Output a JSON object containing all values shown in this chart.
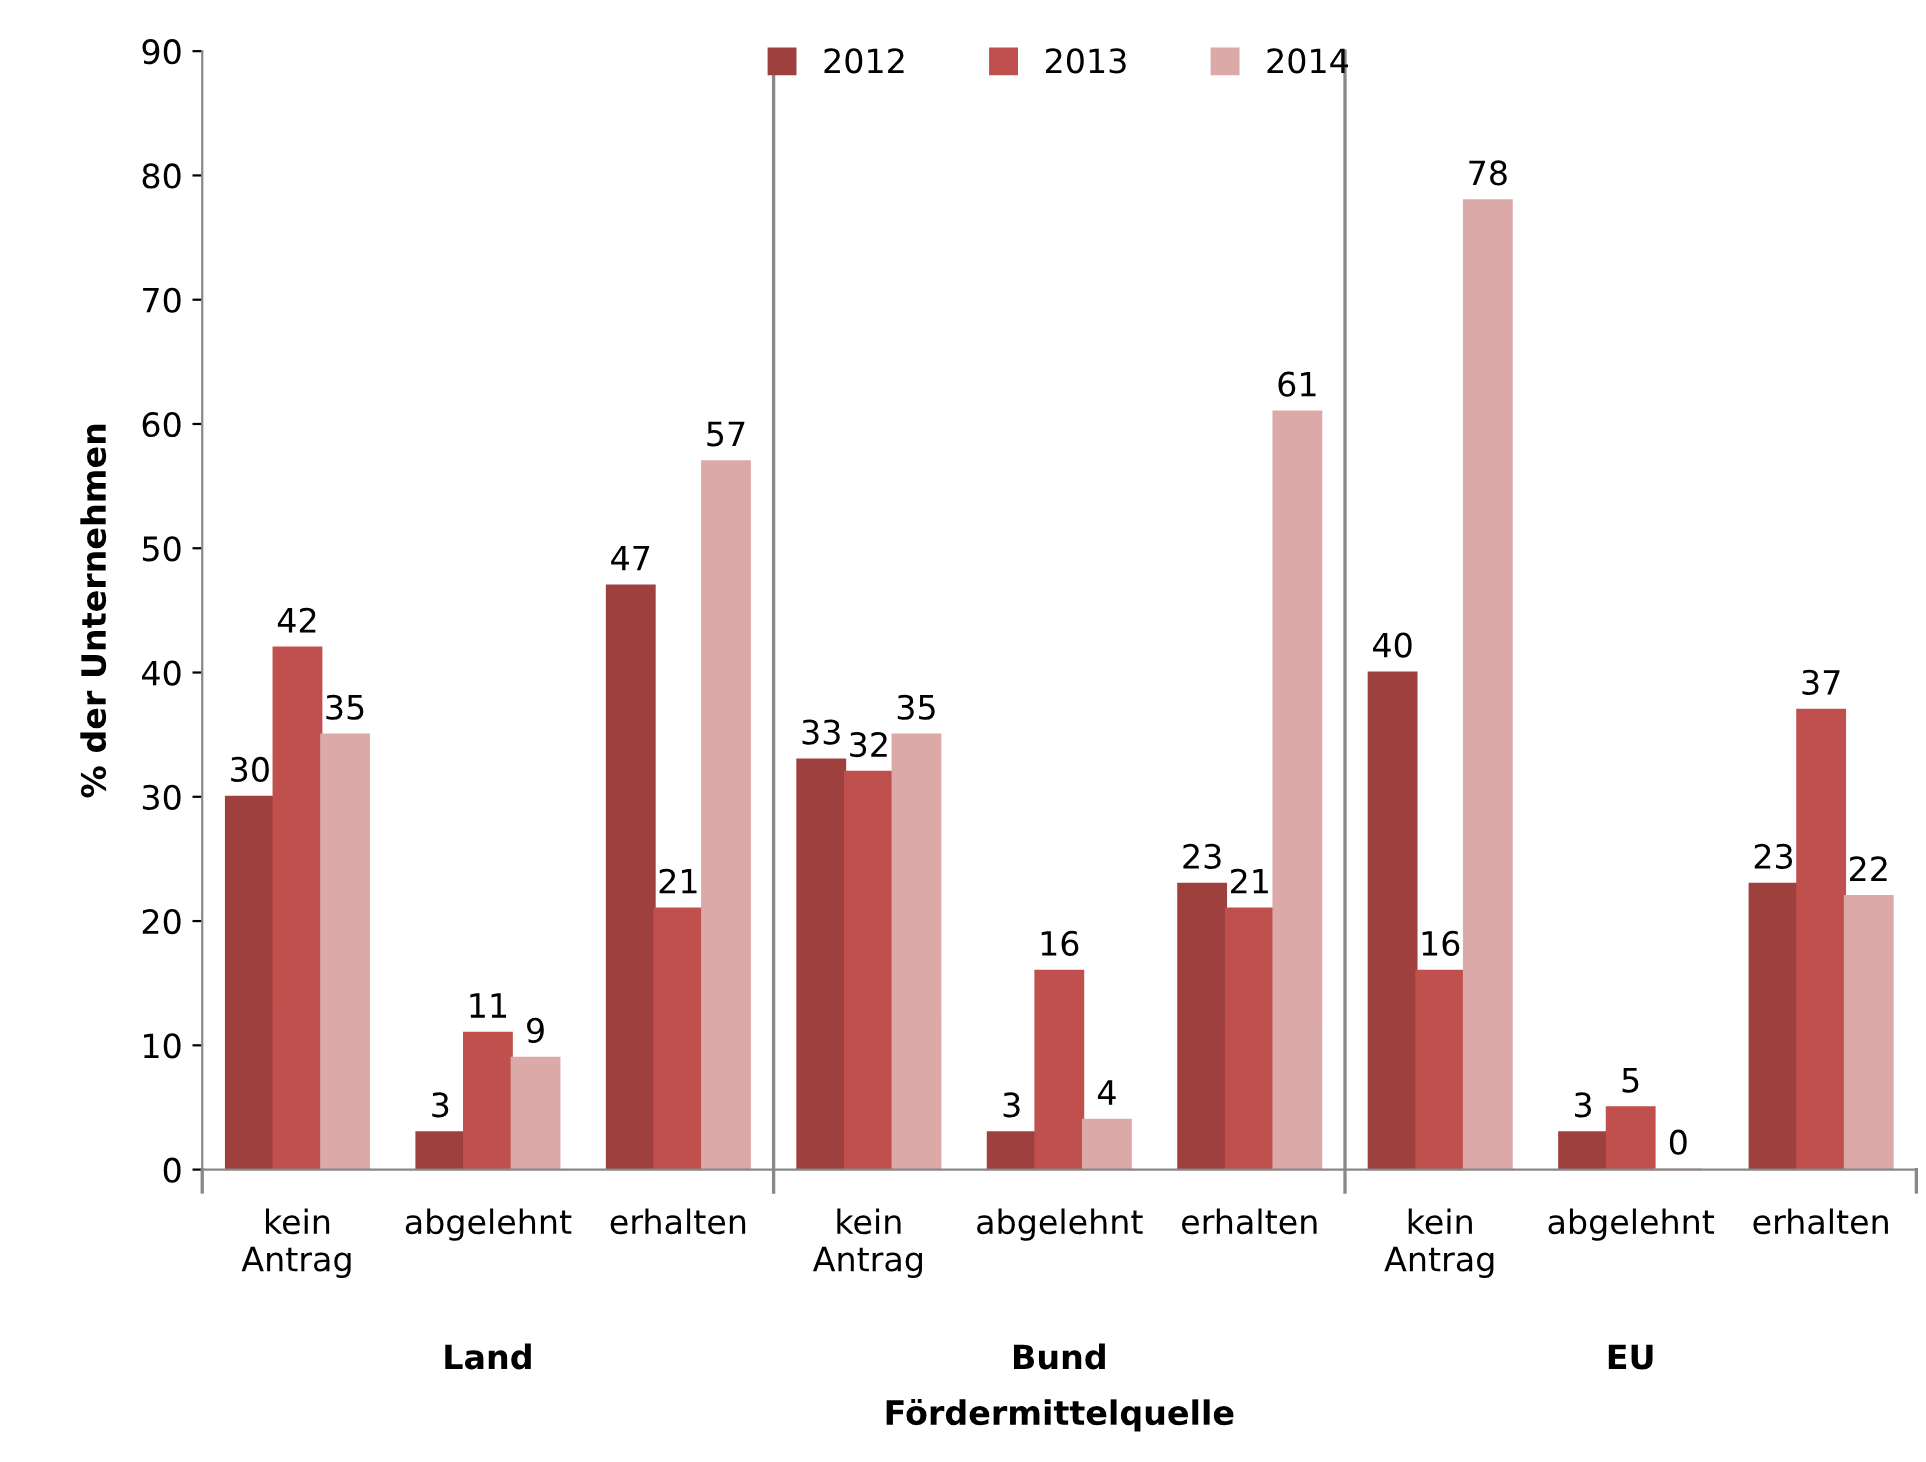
{
  "chart_data": {
    "type": "bar",
    "ylabel": "% der Unternehmen",
    "xlabel": "Fördermittelquelle",
    "categories": [
      "kein\nAntrag",
      "abgelehnt",
      "erhalten",
      "kein\nAntrag",
      "abgelehnt",
      "erhalten",
      "kein\nAntrag",
      "abgelehnt",
      "erhalten"
    ],
    "series": [
      {
        "name": "2012",
        "color": "#9e413e",
        "values": [
          30,
          3,
          47,
          33,
          3,
          23,
          40,
          3,
          23
        ]
      },
      {
        "name": "2013",
        "color": "#c0504d",
        "values": [
          42,
          11,
          21,
          32,
          16,
          21,
          16,
          5,
          37
        ]
      },
      {
        "name": "2014",
        "color": "#dba9a8",
        "values": [
          35,
          9,
          57,
          35,
          4,
          61,
          78,
          0,
          22
        ]
      }
    ],
    "annotations": [
      "Land",
      "Bund",
      "EU"
    ],
    "ylim": [
      0,
      90
    ],
    "yticks": [
      0,
      10,
      20,
      30,
      40,
      50,
      60,
      70,
      80,
      90
    ],
    "data_labels": true,
    "legend": "top",
    "grid": false
  }
}
